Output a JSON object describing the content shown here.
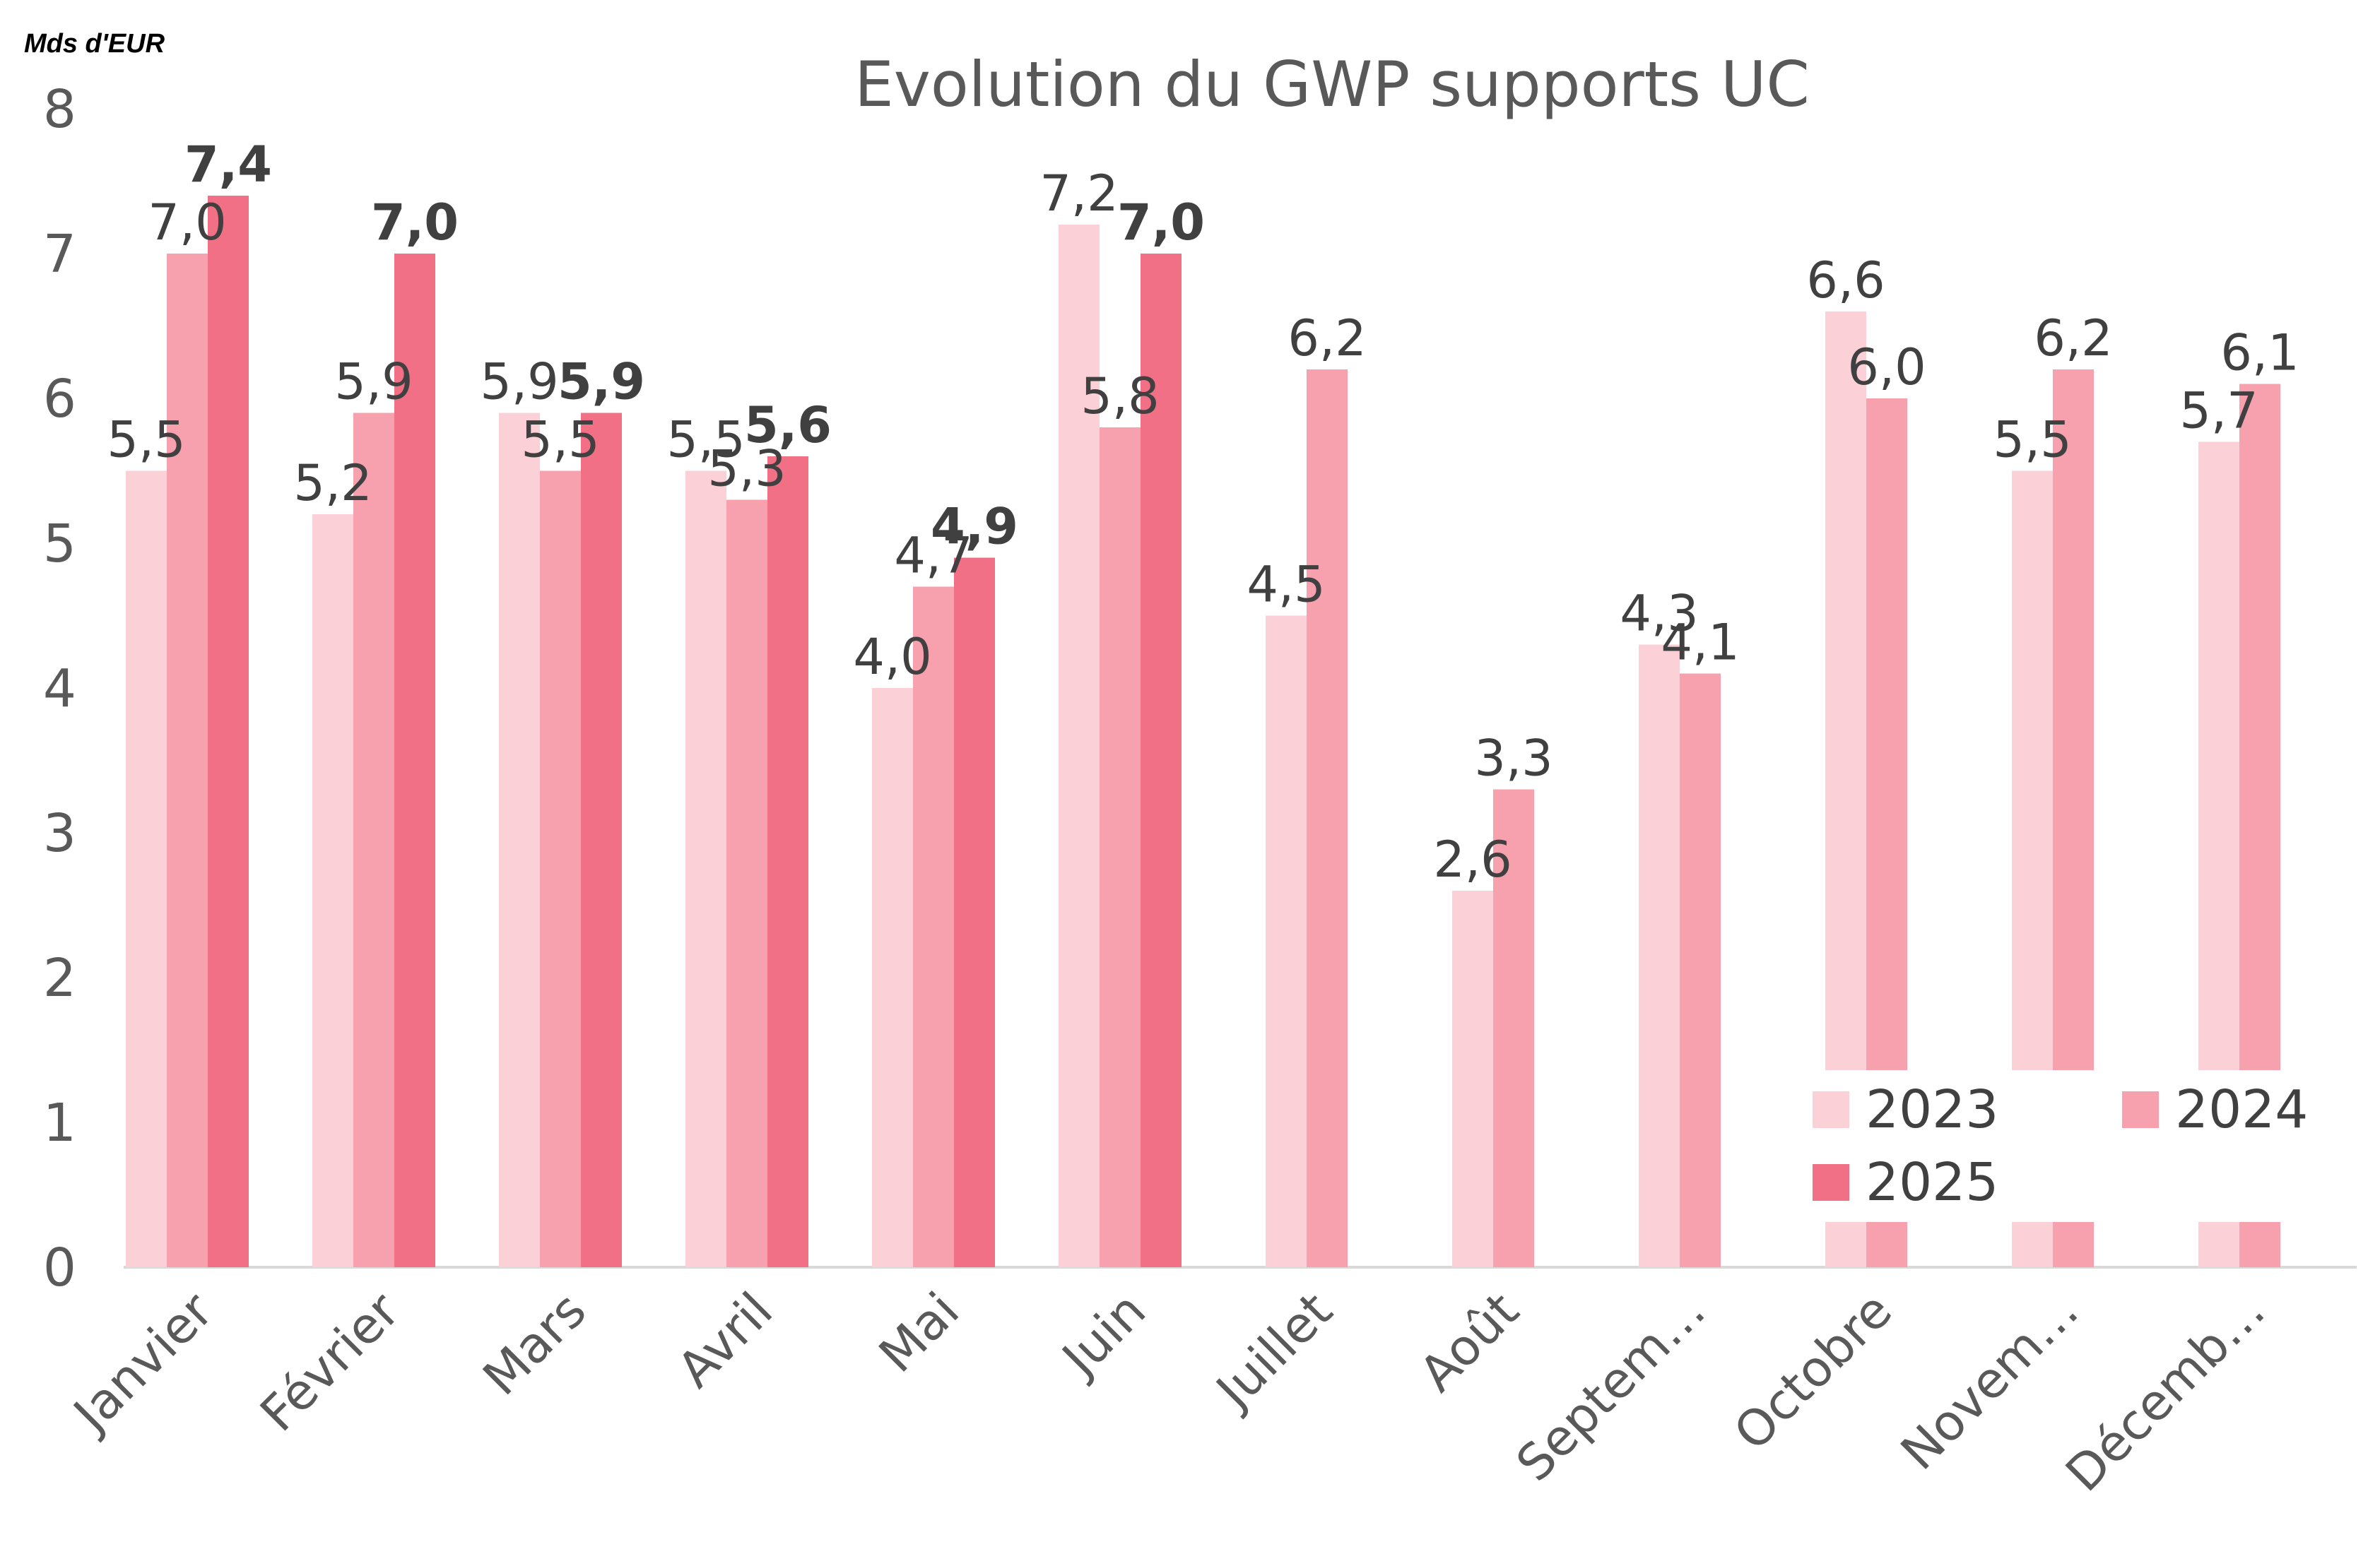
{
  "chart_data": {
    "type": "bar",
    "title": "Evolution du GWP supports UC",
    "unit_label": "Mds d'EUR",
    "ylim": [
      0,
      8
    ],
    "yticks": [
      "0",
      "1",
      "2",
      "3",
      "4",
      "5",
      "6",
      "7",
      "8"
    ],
    "grid": false,
    "legend_position": "bottom-right",
    "categories": [
      "Janvier",
      "Février",
      "Mars",
      "Avril",
      "Mai",
      "Juin",
      "Juillet",
      "Août",
      "Septem…",
      "Octobre",
      "Novem…",
      "Décemb…"
    ],
    "series": [
      {
        "name": "2023",
        "color": "#fbd0d7",
        "values": [
          5.5,
          5.2,
          5.9,
          5.5,
          4.0,
          7.2,
          4.5,
          2.6,
          4.3,
          6.6,
          5.5,
          5.7
        ],
        "labels": [
          "5,5",
          "5,2",
          "5,9",
          "5,5",
          "4,0",
          "7,2",
          "4,5",
          "2,6",
          "4,3",
          "6,6",
          "5,5",
          "5,7"
        ]
      },
      {
        "name": "2024",
        "color": "#f7a0ae",
        "values": [
          7.0,
          5.9,
          5.5,
          5.3,
          4.7,
          5.8,
          6.2,
          3.3,
          4.1,
          6.0,
          6.2,
          6.1
        ],
        "labels": [
          "7,0",
          "5,9",
          "5,5",
          "5,3",
          "4,7",
          "5,8",
          "6,2",
          "3,3",
          "4,1",
          "6,0",
          "6,2",
          "6,1"
        ]
      },
      {
        "name": "2025",
        "color": "#f27086",
        "values": [
          7.4,
          7.0,
          5.9,
          5.6,
          4.9,
          7.0,
          null,
          null,
          null,
          null,
          null,
          null
        ],
        "labels": [
          "7,4",
          "7,0",
          "5,9",
          "5,6",
          "4,9",
          "7,0",
          null,
          null,
          null,
          null,
          null,
          null
        ]
      }
    ]
  }
}
